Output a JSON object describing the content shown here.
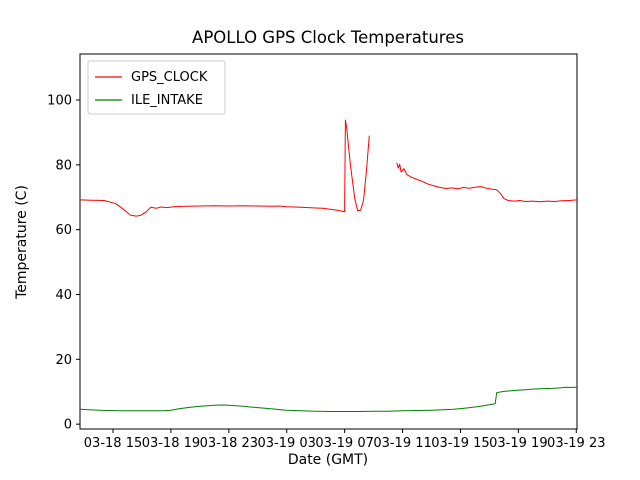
{
  "figure": {
    "background": "#ffffff",
    "plot_border_color": "#000000"
  },
  "chart_data": {
    "type": "line",
    "title": "APOLLO GPS Clock Temperatures",
    "xlabel": "Date (GMT)",
    "ylabel": "Temperature (C)",
    "x_unit": "hours since 03-18 00:00 GMT",
    "xlim": [
      12.72,
      47.05
    ],
    "ylim": [
      -1.5,
      114.2
    ],
    "grid": false,
    "legend_position": "upper left",
    "xticks": {
      "positions": [
        15,
        19,
        23,
        27,
        31,
        35,
        39,
        43,
        47
      ],
      "labels": [
        "03-18 15",
        "03-18 19",
        "03-18 23",
        "03-19 03",
        "03-19 07",
        "03-19 11",
        "03-19 15",
        "03-19 19",
        "03-19 23"
      ]
    },
    "yticks": {
      "positions": [
        0,
        20,
        40,
        60,
        80,
        100
      ],
      "labels": [
        "0",
        "20",
        "40",
        "60",
        "80",
        "100"
      ]
    },
    "series": [
      {
        "name": "GPS_CLOCK",
        "color": "#ff0000",
        "points": [
          [
            12.72,
            69.2
          ],
          [
            13.5,
            69.1
          ],
          [
            14.4,
            69.0
          ],
          [
            15.2,
            68.0
          ],
          [
            15.8,
            66.0
          ],
          [
            16.2,
            64.5
          ],
          [
            16.6,
            64.2
          ],
          [
            16.9,
            64.4
          ],
          [
            17.3,
            65.5
          ],
          [
            17.6,
            66.9
          ],
          [
            18.0,
            66.6
          ],
          [
            18.3,
            67.0
          ],
          [
            18.7,
            66.8
          ],
          [
            19.2,
            67.1
          ],
          [
            20,
            67.2
          ],
          [
            21,
            67.3
          ],
          [
            22,
            67.4
          ],
          [
            23,
            67.3
          ],
          [
            24,
            67.4
          ],
          [
            25,
            67.3
          ],
          [
            26,
            67.2
          ],
          [
            26.5,
            67.3
          ],
          [
            27,
            67.1
          ],
          [
            27.5,
            67.0
          ],
          [
            28,
            66.9
          ],
          [
            28.5,
            66.8
          ],
          [
            29,
            66.7
          ],
          [
            29.5,
            66.6
          ],
          [
            30,
            66.3
          ],
          [
            30.5,
            66.0
          ],
          [
            30.9,
            65.6
          ],
          [
            31.0,
            65.5
          ],
          [
            31.05,
            93.8
          ],
          [
            31.15,
            91.0
          ],
          [
            31.4,
            80.0
          ],
          [
            31.7,
            69.5
          ],
          [
            31.9,
            65.8
          ],
          [
            32.1,
            66.0
          ],
          [
            32.3,
            69.0
          ],
          [
            32.5,
            78.0
          ],
          [
            32.7,
            89.0
          ],
          null,
          [
            34.6,
            80.6
          ],
          [
            34.7,
            79.0
          ],
          [
            34.8,
            80.2
          ],
          [
            34.9,
            77.8
          ],
          [
            35.1,
            78.8
          ],
          [
            35.3,
            77.0
          ],
          [
            35.6,
            76.2
          ],
          [
            36.0,
            75.5
          ],
          [
            36.4,
            74.8
          ],
          [
            36.8,
            74.0
          ],
          [
            37.2,
            73.5
          ],
          [
            37.6,
            73.0
          ],
          [
            38.0,
            72.7
          ],
          [
            38.4,
            72.9
          ],
          [
            38.8,
            72.6
          ],
          [
            39.2,
            73.0
          ],
          [
            39.6,
            72.8
          ],
          [
            40.0,
            73.1
          ],
          [
            40.4,
            73.3
          ],
          [
            40.8,
            72.8
          ],
          [
            41.2,
            72.5
          ],
          [
            41.5,
            72.3
          ],
          [
            41.8,
            71.0
          ],
          [
            42.0,
            69.6
          ],
          [
            42.3,
            69.0
          ],
          [
            42.7,
            68.8
          ],
          [
            43.1,
            69.0
          ],
          [
            43.5,
            68.7
          ],
          [
            44,
            68.8
          ],
          [
            44.5,
            68.6
          ],
          [
            45,
            68.8
          ],
          [
            45.5,
            68.7
          ],
          [
            46,
            68.9
          ],
          [
            46.5,
            69.0
          ],
          [
            47.05,
            69.2
          ]
        ]
      },
      {
        "name": "ILE_INTAKE",
        "color": "#008000",
        "points": [
          [
            12.72,
            4.6
          ],
          [
            13.5,
            4.4
          ],
          [
            14.5,
            4.2
          ],
          [
            15.5,
            4.1
          ],
          [
            16.5,
            4.1
          ],
          [
            17.5,
            4.1
          ],
          [
            18.5,
            4.1
          ],
          [
            19.0,
            4.3
          ],
          [
            19.5,
            4.7
          ],
          [
            20.0,
            5.0
          ],
          [
            20.5,
            5.3
          ],
          [
            21.0,
            5.5
          ],
          [
            21.5,
            5.7
          ],
          [
            22.0,
            5.8
          ],
          [
            22.5,
            5.9
          ],
          [
            23.0,
            5.8
          ],
          [
            23.5,
            5.7
          ],
          [
            24.0,
            5.5
          ],
          [
            24.5,
            5.3
          ],
          [
            25.0,
            5.1
          ],
          [
            25.5,
            4.9
          ],
          [
            26.0,
            4.7
          ],
          [
            26.5,
            4.5
          ],
          [
            27.0,
            4.3
          ],
          [
            27.5,
            4.2
          ],
          [
            28.0,
            4.1
          ],
          [
            29.0,
            4.0
          ],
          [
            30.0,
            3.9
          ],
          [
            31.0,
            3.9
          ],
          [
            32.0,
            3.9
          ],
          [
            33.0,
            4.0
          ],
          [
            34.0,
            4.0
          ],
          [
            35.0,
            4.1
          ],
          [
            36.0,
            4.2
          ],
          [
            37.0,
            4.3
          ],
          [
            38.0,
            4.5
          ],
          [
            38.5,
            4.6
          ],
          [
            39.0,
            4.8
          ],
          [
            39.5,
            5.0
          ],
          [
            40.0,
            5.3
          ],
          [
            40.5,
            5.6
          ],
          [
            41.0,
            6.0
          ],
          [
            41.4,
            6.3
          ],
          [
            41.5,
            9.7
          ],
          [
            41.7,
            9.9
          ],
          [
            42.0,
            10.1
          ],
          [
            42.5,
            10.3
          ],
          [
            43.0,
            10.5
          ],
          [
            43.5,
            10.6
          ],
          [
            44.0,
            10.8
          ],
          [
            44.5,
            10.9
          ],
          [
            45.0,
            11.0
          ],
          [
            45.5,
            11.1
          ],
          [
            46.0,
            11.2
          ],
          [
            46.3,
            11.4
          ],
          [
            46.6,
            11.3
          ],
          [
            47.05,
            11.4
          ]
        ]
      }
    ]
  }
}
